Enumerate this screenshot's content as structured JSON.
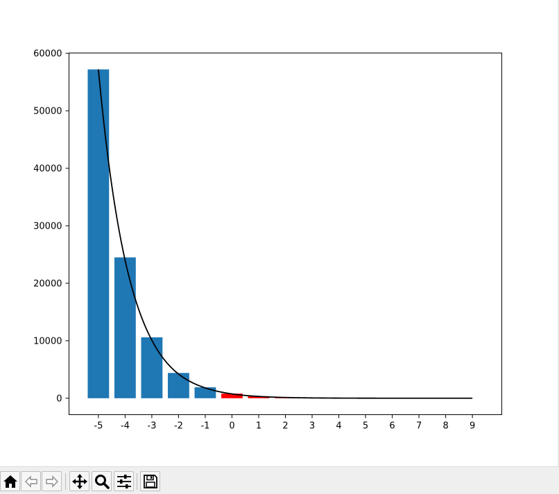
{
  "chart_data": {
    "type": "bar",
    "title": "",
    "xlabel": "",
    "ylabel": "",
    "categories": [
      "-5",
      "-4",
      "-3",
      "-2",
      "-1",
      "0",
      "1",
      "2"
    ],
    "values": [
      57200,
      24500,
      10600,
      4400,
      1900,
      800,
      350,
      150
    ],
    "bar_colors": [
      "#1f77b4",
      "#1f77b4",
      "#1f77b4",
      "#1f77b4",
      "#1f77b4",
      "#ff0000",
      "#ff0000",
      "#ff0000"
    ],
    "x_ticks": [
      -5,
      -4,
      -3,
      -2,
      -1,
      0,
      1,
      2,
      3,
      4,
      5,
      6,
      7,
      8,
      9
    ],
    "x_tick_labels": [
      "-5",
      "-4",
      "-3",
      "-2",
      "-1",
      "0",
      "1",
      "2",
      "3",
      "4",
      "5",
      "6",
      "7",
      "8",
      "9"
    ],
    "xlim": [
      -6.1,
      10.1
    ],
    "ylim": [
      -2860,
      60060
    ],
    "y_ticks": [
      0,
      10000,
      20000,
      30000,
      40000,
      50000,
      60000
    ],
    "y_tick_labels": [
      "0",
      "10000",
      "20000",
      "30000",
      "40000",
      "50000",
      "60000"
    ],
    "fit_curve": {
      "type": "exponential",
      "color": "#000000",
      "x_range": [
        -5,
        9
      ],
      "points": [
        [
          -5,
          57200
        ],
        [
          -4,
          24000
        ],
        [
          -3,
          10100
        ],
        [
          -2,
          4200
        ],
        [
          -1,
          1800
        ],
        [
          0,
          750
        ],
        [
          1,
          310
        ],
        [
          2,
          130
        ],
        [
          3,
          55
        ],
        [
          4,
          23
        ],
        [
          5,
          10
        ],
        [
          6,
          4
        ],
        [
          7,
          2
        ],
        [
          8,
          1
        ],
        [
          9,
          0
        ]
      ]
    },
    "grid": false,
    "legend": "none"
  },
  "toolbar": {
    "buttons": [
      {
        "name": "home-button",
        "icon": "home-icon"
      },
      {
        "name": "back-button",
        "icon": "back-arrow-icon"
      },
      {
        "name": "forward-button",
        "icon": "forward-arrow-icon"
      },
      {
        "name": "pan-button",
        "icon": "move-icon"
      },
      {
        "name": "zoom-button",
        "icon": "zoom-icon"
      },
      {
        "name": "configure-subplots-button",
        "icon": "sliders-icon"
      },
      {
        "name": "save-button",
        "icon": "save-icon"
      }
    ]
  }
}
